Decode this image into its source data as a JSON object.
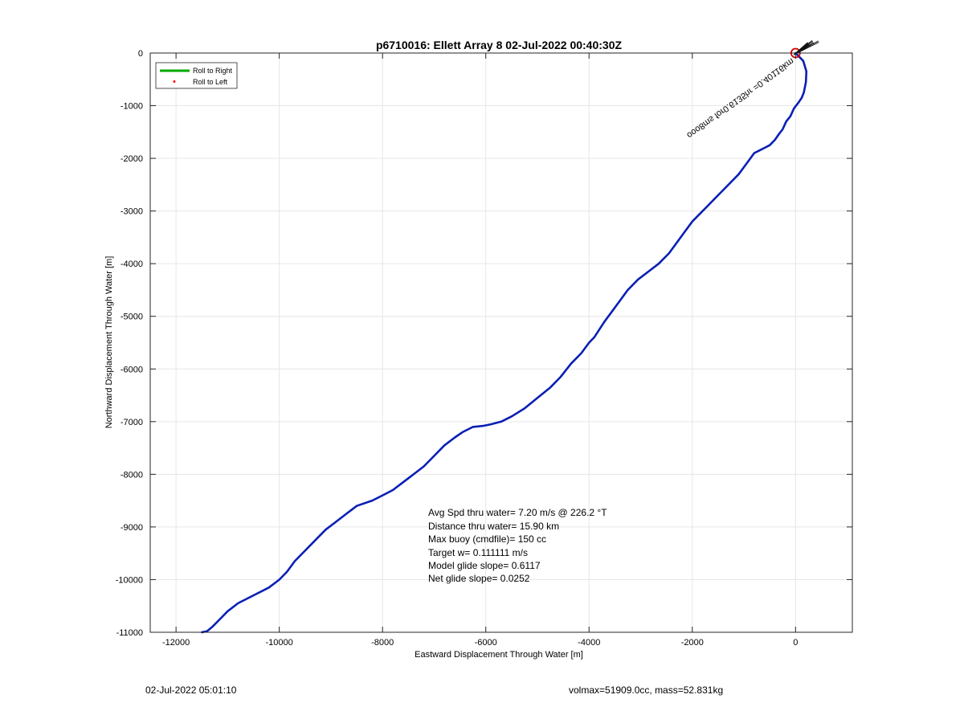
{
  "chart_data": {
    "type": "line",
    "title": "p6710016: Ellett Array 8 02-Jul-2022 00:40:30Z",
    "xlabel": "Eastward Displacement Through Water [m]",
    "ylabel": "Northward Displacement Through Water [m]",
    "xlim": [
      -12500,
      1100
    ],
    "ylim": [
      -11000,
      0
    ],
    "xticks": [
      -12000,
      -10000,
      -8000,
      -6000,
      -4000,
      -2000,
      0
    ],
    "yticks": [
      0,
      -1000,
      -2000,
      -3000,
      -4000,
      -5000,
      -6000,
      -7000,
      -8000,
      -9000,
      -10000,
      -11000
    ],
    "grid": true,
    "legend_position": "top-left",
    "legend": [
      {
        "label": "Roll to Right",
        "color": "#00aa00",
        "style": "line"
      },
      {
        "label": "Roll to Left",
        "color": "#ff0000",
        "style": "dot"
      }
    ],
    "series": [
      {
        "color": "#0a1fb5",
        "x": [
          0,
          150,
          210,
          200,
          160,
          120,
          50,
          -30,
          -100,
          -180,
          -250,
          -330,
          -400,
          -500,
          -600,
          -700,
          -800,
          -950,
          -1100,
          -1300,
          -1500,
          -1700,
          -1850,
          -2000,
          -2150,
          -2300,
          -2450,
          -2650,
          -2850,
          -3050,
          -3250,
          -3400,
          -3550,
          -3700,
          -3800,
          -3900,
          -4000,
          -4150,
          -4350,
          -4550,
          -4750,
          -5000,
          -5250,
          -5500,
          -5700,
          -5900,
          -6050,
          -6250,
          -6450,
          -6600,
          -6800,
          -7000,
          -7200,
          -7400,
          -7600,
          -7800,
          -8000,
          -8200,
          -8500,
          -8700,
          -8900,
          -9100,
          -9300,
          -9500,
          -9700,
          -9850,
          -10000,
          -10200,
          -10500,
          -10800,
          -11000,
          -11150,
          -11300,
          -11400,
          -11500
        ],
        "y": [
          0,
          -150,
          -350,
          -550,
          -750,
          -850,
          -950,
          -1050,
          -1200,
          -1300,
          -1450,
          -1550,
          -1650,
          -1750,
          -1800,
          -1850,
          -1900,
          -2100,
          -2300,
          -2500,
          -2700,
          -2900,
          -3050,
          -3200,
          -3400,
          -3600,
          -3800,
          -4000,
          -4150,
          -4300,
          -4500,
          -4700,
          -4900,
          -5100,
          -5250,
          -5400,
          -5500,
          -5700,
          -5900,
          -6150,
          -6350,
          -6550,
          -6750,
          -6900,
          -7000,
          -7050,
          -7080,
          -7100,
          -7200,
          -7300,
          -7450,
          -7650,
          -7850,
          -8000,
          -8150,
          -8300,
          -8400,
          -8500,
          -8600,
          -8750,
          -8900,
          -9050,
          -9250,
          -9450,
          -9650,
          -9850,
          -10000,
          -10150,
          -10300,
          -10450,
          -10600,
          -10750,
          -10900,
          -10980,
          -11000
        ]
      }
    ],
    "marker": {
      "x": 0,
      "y": 0,
      "color": "#d40000",
      "shape": "circle"
    },
    "annotations": {
      "rotated_text": "ooo8ms for0.6135hr =0.40116km",
      "stats": [
        "Avg Spd thru water=  7.20 m/s @ 226.2 °T",
        "Distance thru water= 15.90 km",
        "Max buoy (cmdfile)= 150 cc",
        "Target w= 0.111111 m/s",
        "Model glide slope= 0.6117",
        "Net glide slope= 0.0252"
      ]
    }
  },
  "footer": {
    "timestamp": "02-Jul-2022 05:01:10",
    "right": "volmax=51909.0cc, mass=52.831kg"
  }
}
